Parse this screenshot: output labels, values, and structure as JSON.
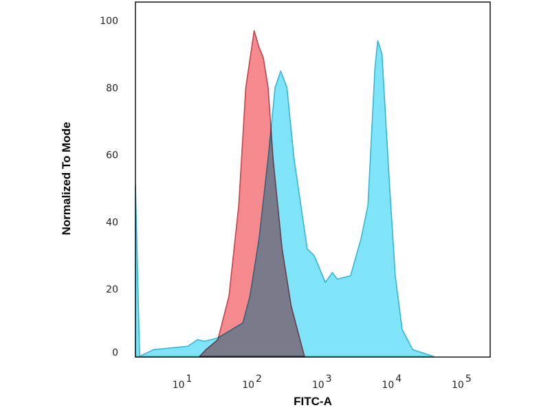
{
  "chart_data": {
    "type": "area",
    "title": "",
    "xlabel": "FITC-A",
    "ylabel": "Normalized To Mode",
    "x_scale": "log",
    "xlim_log10": [
      0.33,
      5.41
    ],
    "ylim": [
      0,
      100
    ],
    "x_ticks": [
      {
        "exp": "1",
        "base": "10",
        "log": 1
      },
      {
        "exp": "2",
        "base": "10",
        "log": 2
      },
      {
        "exp": "3",
        "base": "10",
        "log": 3
      },
      {
        "exp": "4",
        "base": "10",
        "log": 4
      },
      {
        "exp": "5",
        "base": "10",
        "log": 5
      }
    ],
    "y_ticks": [
      "0",
      "20",
      "40",
      "60",
      "80",
      "100"
    ],
    "grid": false,
    "series": [
      {
        "color": "#f4898e",
        "stroke": "#c0444c",
        "log10_x": [
          1.25,
          1.34,
          1.51,
          1.67,
          1.81,
          1.91,
          2.03,
          2.1,
          2.16,
          2.23,
          2.3,
          2.43,
          2.56,
          2.75
        ],
        "y": [
          0,
          2,
          5,
          18,
          45,
          80,
          97,
          92,
          89,
          80,
          59,
          32,
          15,
          0
        ]
      },
      {
        "color": "#80e4f8",
        "stroke": "#35b5d0",
        "log10_x": [
          0.33,
          0.33,
          0.39,
          0.59,
          1.08,
          1.22,
          1.32,
          1.51,
          1.71,
          1.87,
          1.97,
          2.1,
          2.23,
          2.33,
          2.41,
          2.5,
          2.6,
          2.79,
          2.89,
          3.05,
          3.15,
          3.22,
          3.41,
          3.56,
          3.66,
          3.76,
          3.8,
          3.86,
          3.96,
          4.05,
          4.15,
          4.3,
          4.6
        ],
        "y": [
          0,
          51,
          0,
          2,
          3,
          5,
          4.5,
          5.5,
          8,
          10,
          18,
          35,
          59,
          80,
          85,
          80,
          59,
          32,
          30,
          22,
          25,
          23,
          24,
          35,
          45,
          86,
          94,
          90,
          54,
          24,
          8,
          2,
          0
        ]
      }
    ]
  }
}
